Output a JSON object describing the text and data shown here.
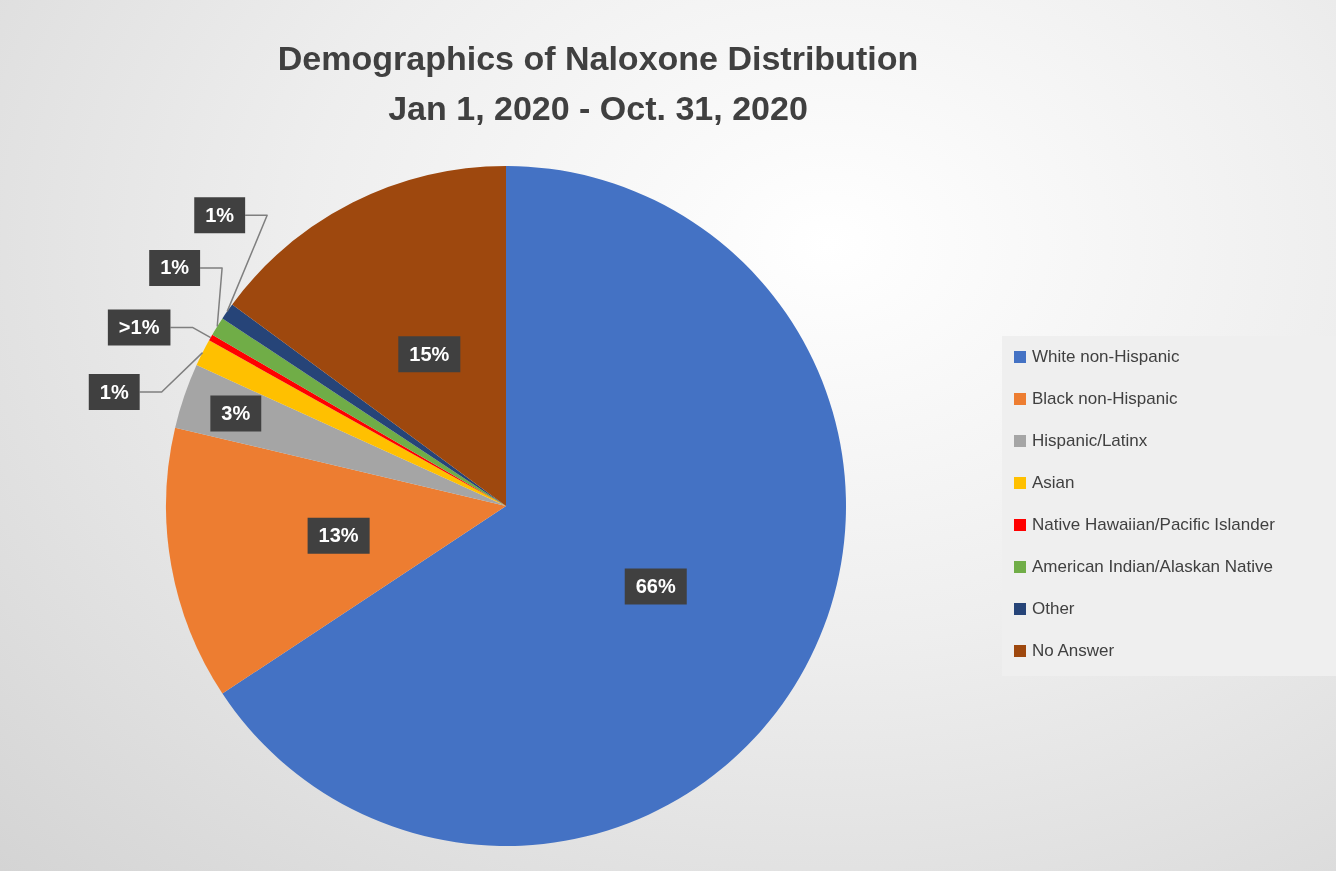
{
  "chart_data": {
    "type": "pie",
    "title": "Demographics of Naloxone Distribution",
    "subtitle": "Jan 1, 2020 - Oct. 31, 2020",
    "categories": [
      "White non-Hispanic",
      "Black non-Hispanic",
      "Hispanic/Latinx",
      "Asian",
      "Native Hawaiian/Pacific Islander",
      "American Indian/Alaskan Native",
      "Other",
      "No Answer"
    ],
    "values": [
      65.7,
      13.0,
      3.1,
      1.3,
      0.3,
      0.9,
      0.8,
      14.9
    ],
    "colors": [
      "#4472c4",
      "#ed7d31",
      "#a5a5a5",
      "#ffc000",
      "#ff0000",
      "#70ad47",
      "#264478",
      "#9e480e"
    ],
    "value_labels": [
      "66%",
      "13%",
      "3%",
      "1%",
      ">1%",
      "1%",
      "1%",
      "15%"
    ],
    "legend": "right"
  }
}
